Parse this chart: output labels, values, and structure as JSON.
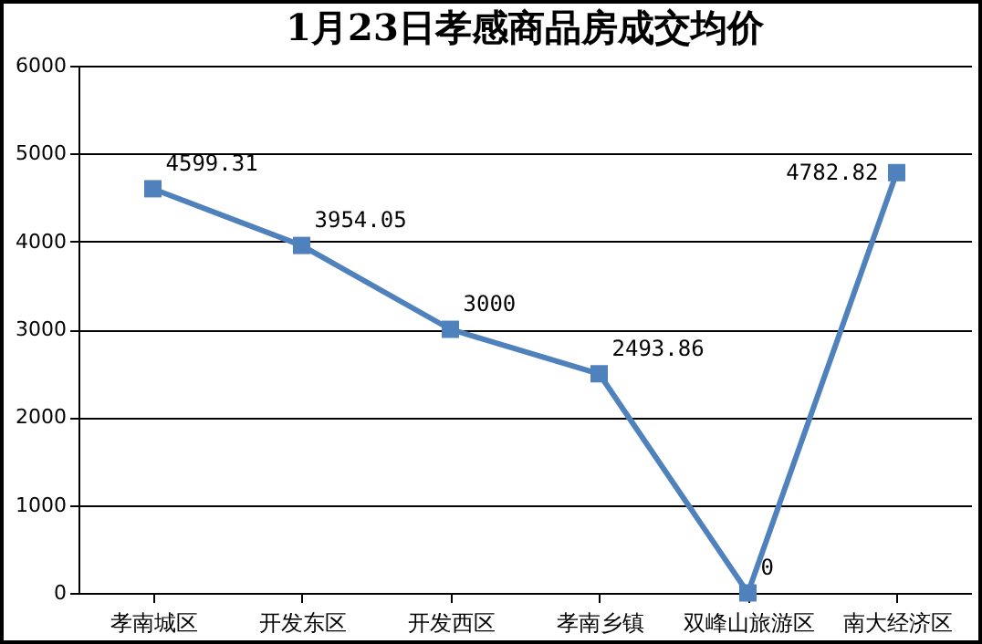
{
  "chart_data": {
    "type": "line",
    "title": "1月23日孝感商品房成交均价",
    "categories": [
      "孝南城区",
      "开发东区",
      "开发西区",
      "孝南乡镇",
      "双峰山旅游区",
      "南大经济区"
    ],
    "series": [
      {
        "color": "#4f81bd",
        "values": [
          4599.31,
          3954.05,
          3000,
          2493.86,
          0,
          4782.82
        ]
      }
    ],
    "ylim": [
      0,
      6000
    ],
    "yticks": [
      0,
      1000,
      2000,
      3000,
      4000,
      5000,
      6000
    ],
    "grid": "y",
    "marker": "square",
    "data_labels": true
  }
}
